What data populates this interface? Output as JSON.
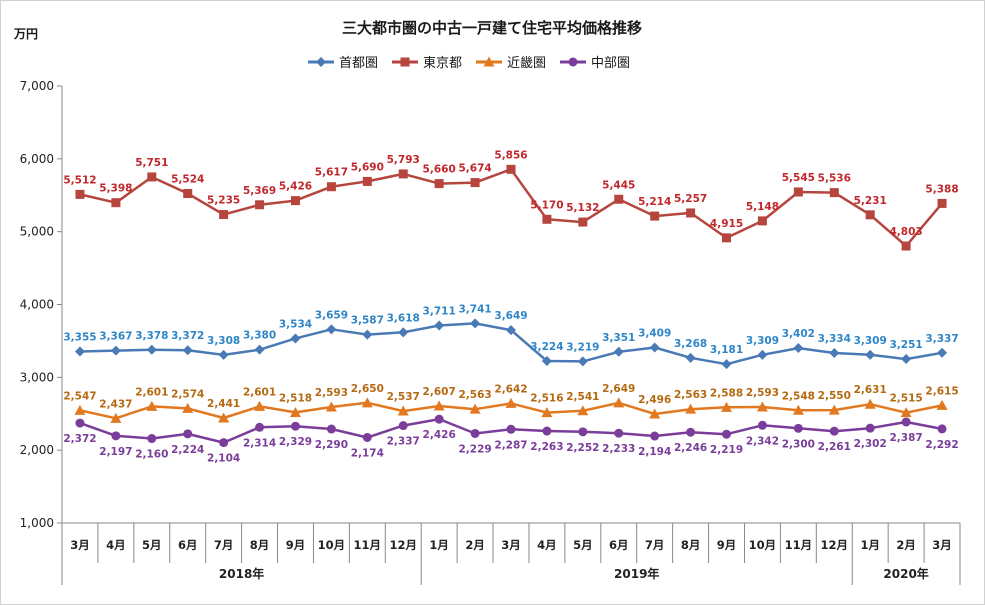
{
  "chart_data": {
    "type": "line",
    "title": "三大都市圏の中古一戸建て住宅平均価格推移",
    "ylabel": "万円",
    "ylim": [
      1000,
      7000
    ],
    "yticks": [
      "1,000",
      "2,000",
      "3,000",
      "4,000",
      "5,000",
      "6,000",
      "7,000"
    ],
    "categories": [
      "3月",
      "4月",
      "5月",
      "6月",
      "7月",
      "8月",
      "9月",
      "10月",
      "11月",
      "12月",
      "1月",
      "2月",
      "3月",
      "4月",
      "5月",
      "6月",
      "7月",
      "8月",
      "9月",
      "10月",
      "11月",
      "12月",
      "1月",
      "2月",
      "3月"
    ],
    "year_groups": [
      {
        "label": "2018年",
        "start": 0,
        "end": 9
      },
      {
        "label": "2019年",
        "start": 10,
        "end": 21
      },
      {
        "label": "2020年",
        "start": 22,
        "end": 24
      }
    ],
    "legend_position": "top-center",
    "grid": false,
    "series": [
      {
        "name": "首都圏",
        "color": "#4a7ab5",
        "label_color": "#2e86c8",
        "marker": "diamond",
        "label_pos": "above",
        "values": [
          3355,
          3367,
          3378,
          3372,
          3308,
          3380,
          3534,
          3659,
          3587,
          3618,
          3711,
          3741,
          3649,
          3224,
          3219,
          3351,
          3409,
          3268,
          3181,
          3309,
          3402,
          3334,
          3309,
          3251,
          3337
        ],
        "labels": [
          "3,355",
          "3,367",
          "3,378",
          "3,372",
          "3,308",
          "3,380",
          "3,534",
          "3,659",
          "3,587",
          "3,618",
          "3,711",
          "3,741",
          "3,649",
          "3,224",
          "3,219",
          "3,351",
          "3,409",
          "3,268",
          "3,181",
          "3,309",
          "3,402",
          "3,334",
          "3,309",
          "3,251",
          "3,337"
        ]
      },
      {
        "name": "東京都",
        "color": "#b5453d",
        "label_color": "#c0282d",
        "marker": "square",
        "label_pos": "above",
        "values": [
          5512,
          5398,
          5751,
          5524,
          5235,
          5369,
          5426,
          5617,
          5690,
          5793,
          5660,
          5674,
          5856,
          5170,
          5132,
          5445,
          5214,
          5257,
          4915,
          5148,
          5545,
          5536,
          5231,
          4803,
          5388
        ],
        "labels": [
          "5,512",
          "5,398",
          "5,751",
          "5,524",
          "5,235",
          "5,369",
          "5,426",
          "5,617",
          "5,690",
          "5,793",
          "5,660",
          "5,674",
          "5,856",
          "5,170",
          "5,132",
          "5,445",
          "5,214",
          "5,257",
          "4,915",
          "5,148",
          "5,545",
          "5,536",
          "5,231",
          "4,803",
          "5,388"
        ]
      },
      {
        "name": "近畿圏",
        "color": "#e2781f",
        "label_color": "#b56a12",
        "marker": "triangle",
        "label_pos": "above",
        "values": [
          2547,
          2437,
          2601,
          2574,
          2441,
          2601,
          2518,
          2593,
          2650,
          2537,
          2607,
          2563,
          2642,
          2516,
          2541,
          2649,
          2496,
          2563,
          2588,
          2593,
          2548,
          2550,
          2631,
          2515,
          2615
        ],
        "labels": [
          "2,547",
          "2,437",
          "2,601",
          "2,574",
          "2,441",
          "2,601",
          "2,518",
          "2,593",
          "2,650",
          "2,537",
          "2,607",
          "2,563",
          "2,642",
          "2,516",
          "2,541",
          "2,649",
          "2,496",
          "2,563",
          "2,588",
          "2,593",
          "2,548",
          "2,550",
          "2,631",
          "2,515",
          "2,615"
        ]
      },
      {
        "name": "中部圏",
        "color": "#7a3d9a",
        "label_color": "#7a3d9a",
        "marker": "circle",
        "label_pos": "below",
        "values": [
          2372,
          2197,
          2160,
          2224,
          2104,
          2314,
          2329,
          2290,
          2174,
          2337,
          2426,
          2229,
          2287,
          2263,
          2252,
          2233,
          2194,
          2246,
          2219,
          2342,
          2300,
          2261,
          2302,
          2387,
          2292
        ],
        "labels": [
          "2,372",
          "2,197",
          "2,160",
          "2,224",
          "2,104",
          "2,314",
          "2,329",
          "2,290",
          "2,174",
          "2,337",
          "2,426",
          "2,229",
          "2,287",
          "2,263",
          "2,252",
          "2,233",
          "2,194",
          "2,246",
          "2,219",
          "2,342",
          "2,300",
          "2,261",
          "2,302",
          "2,387",
          "2,292"
        ]
      }
    ]
  }
}
